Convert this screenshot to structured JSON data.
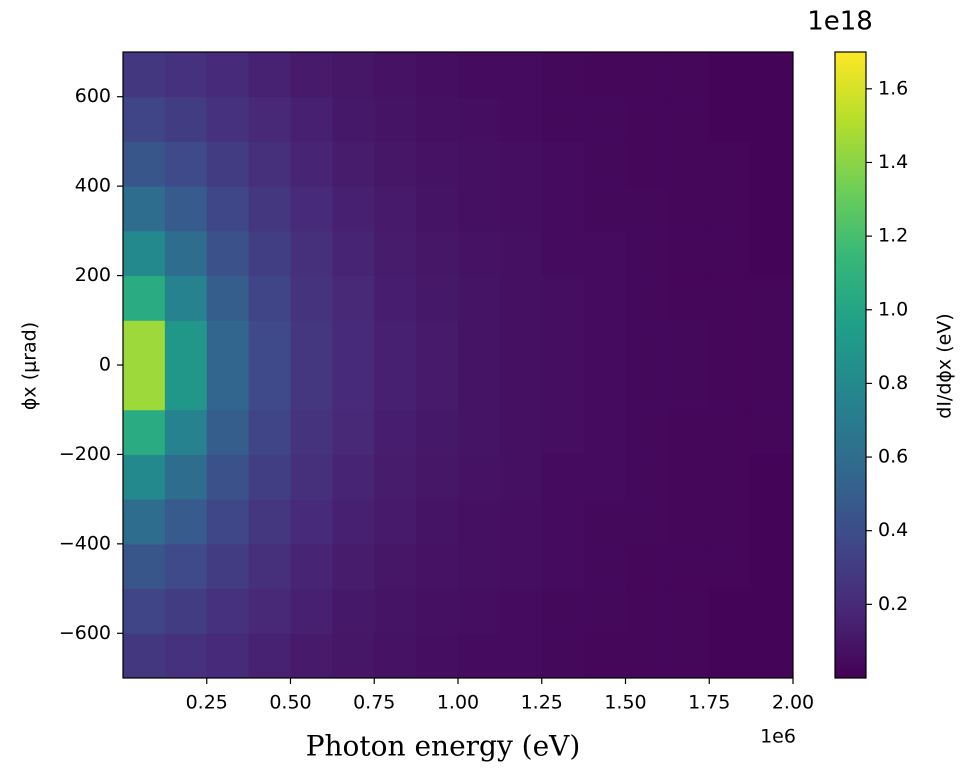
{
  "chart_data": {
    "type": "heatmap",
    "x_label": "Photon energy (eV)",
    "y_label": "ϕx (μrad)",
    "x_offset_label": "1e6",
    "colorbar_label": "dI/dϕx (eV)",
    "colorbar_offset_label": "1e18",
    "colormap": "viridis",
    "xlim": [
      0,
      2
    ],
    "ylim": [
      -700,
      700
    ],
    "clim": [
      0,
      1.7
    ],
    "xticks": [
      0.25,
      {
        "value": 0.5,
        "label": "0.50"
      },
      0.75,
      {
        "value": 1,
        "label": "1.00"
      },
      1.25,
      {
        "value": 1.5,
        "label": "1.50"
      },
      1.75,
      {
        "value": 2,
        "label": "2.00"
      }
    ],
    "yticks": [
      {
        "value": -600,
        "label": "−600"
      },
      {
        "value": -400,
        "label": "−400"
      },
      {
        "value": -200,
        "label": "−200"
      },
      0,
      200,
      400,
      600
    ],
    "cticks": [
      0.2,
      0.4,
      0.6,
      0.8,
      {
        "value": 1,
        "label": "1.0"
      },
      1.2,
      1.4,
      1.6
    ],
    "xbins": [
      0,
      0.125,
      0.25,
      0.375,
      0.5,
      0.625,
      0.75,
      0.875,
      1,
      1.125,
      1.25,
      1.375,
      1.5,
      1.625,
      1.75,
      1.875,
      2
    ],
    "ybins": [
      -700,
      -600,
      -500,
      -400,
      -300,
      -200,
      -100,
      0,
      100,
      200,
      300,
      400,
      500,
      600,
      700
    ],
    "z": [
      [
        0.28,
        0.24,
        0.2,
        0.16,
        0.12,
        0.1,
        0.08,
        0.06,
        0.05,
        0.05,
        0.04,
        0.03,
        0.03,
        0.03,
        0.02,
        0.02
      ],
      [
        0.35,
        0.3,
        0.24,
        0.19,
        0.15,
        0.11,
        0.09,
        0.07,
        0.06,
        0.05,
        0.04,
        0.04,
        0.03,
        0.03,
        0.02,
        0.02
      ],
      [
        0.45,
        0.38,
        0.3,
        0.23,
        0.17,
        0.13,
        0.1,
        0.08,
        0.07,
        0.06,
        0.05,
        0.04,
        0.03,
        0.03,
        0.03,
        0.02
      ],
      [
        0.6,
        0.48,
        0.36,
        0.27,
        0.2,
        0.15,
        0.12,
        0.09,
        0.07,
        0.06,
        0.05,
        0.04,
        0.04,
        0.03,
        0.03,
        0.02
      ],
      [
        0.8,
        0.6,
        0.42,
        0.31,
        0.23,
        0.17,
        0.13,
        0.1,
        0.08,
        0.07,
        0.05,
        0.05,
        0.04,
        0.03,
        0.03,
        0.02
      ],
      [
        1.05,
        0.75,
        0.5,
        0.35,
        0.25,
        0.19,
        0.14,
        0.11,
        0.09,
        0.07,
        0.06,
        0.05,
        0.04,
        0.03,
        0.03,
        0.03
      ],
      [
        1.45,
        0.9,
        0.55,
        0.38,
        0.27,
        0.2,
        0.15,
        0.12,
        0.09,
        0.07,
        0.06,
        0.05,
        0.04,
        0.04,
        0.03,
        0.03
      ],
      [
        1.45,
        0.9,
        0.55,
        0.38,
        0.27,
        0.2,
        0.15,
        0.12,
        0.09,
        0.07,
        0.06,
        0.05,
        0.04,
        0.04,
        0.03,
        0.03
      ],
      [
        1.05,
        0.75,
        0.5,
        0.35,
        0.25,
        0.19,
        0.14,
        0.11,
        0.09,
        0.07,
        0.06,
        0.05,
        0.04,
        0.03,
        0.03,
        0.03
      ],
      [
        0.8,
        0.6,
        0.42,
        0.31,
        0.23,
        0.17,
        0.13,
        0.1,
        0.08,
        0.07,
        0.05,
        0.05,
        0.04,
        0.03,
        0.03,
        0.02
      ],
      [
        0.6,
        0.48,
        0.36,
        0.27,
        0.2,
        0.15,
        0.12,
        0.09,
        0.07,
        0.06,
        0.05,
        0.04,
        0.04,
        0.03,
        0.03,
        0.02
      ],
      [
        0.45,
        0.38,
        0.3,
        0.23,
        0.17,
        0.13,
        0.1,
        0.08,
        0.07,
        0.06,
        0.05,
        0.04,
        0.03,
        0.03,
        0.03,
        0.02
      ],
      [
        0.35,
        0.3,
        0.24,
        0.19,
        0.15,
        0.11,
        0.09,
        0.07,
        0.06,
        0.05,
        0.04,
        0.04,
        0.03,
        0.03,
        0.02,
        0.02
      ],
      [
        0.28,
        0.24,
        0.2,
        0.16,
        0.12,
        0.1,
        0.08,
        0.06,
        0.05,
        0.05,
        0.04,
        0.03,
        0.03,
        0.03,
        0.02,
        0.02
      ]
    ]
  }
}
